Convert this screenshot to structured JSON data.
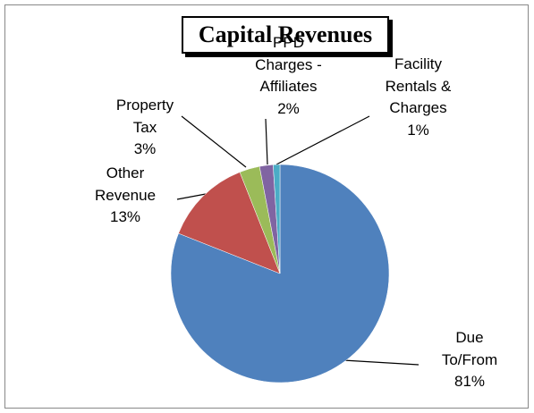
{
  "chart_data": {
    "type": "pie",
    "title": "Capital Revenues",
    "categories": [
      "Due To/From",
      "Other Revenue",
      "Property Tax",
      "PPD Charges - Affiliates",
      "Facility Rentals & Charges"
    ],
    "values": [
      81,
      13,
      3,
      2,
      1
    ],
    "value_labels": [
      "81%",
      "13%",
      "3%",
      "2%",
      "1%"
    ],
    "colors": [
      "#4f81bd",
      "#c0504d",
      "#9bbb59",
      "#8064a2",
      "#4bacc6"
    ]
  }
}
